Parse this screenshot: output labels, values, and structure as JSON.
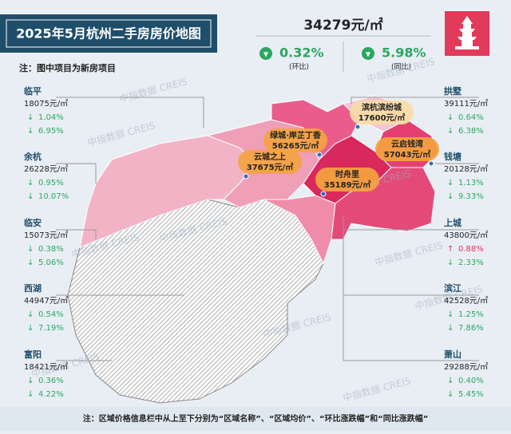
{
  "header": {
    "title": "2025年5月杭州二手房房价地图",
    "price": "34279元/㎡",
    "mom": {
      "arrow": "▼",
      "value": "0.32%",
      "label": "(环比)"
    },
    "yoy": {
      "arrow": "▼",
      "value": "5.98%",
      "label": "(同比)"
    }
  },
  "note": "注：图中项目为新房项目",
  "watermark": "中指数据 CREIS",
  "districts_left": [
    {
      "name": "临平",
      "price": "18075元/㎡",
      "mom_arrow": "↓",
      "mom": "1.04%",
      "yoy_arrow": "↓",
      "yoy": "6.95%"
    },
    {
      "name": "余杭",
      "price": "26228元/㎡",
      "mom_arrow": "↓",
      "mom": "0.95%",
      "yoy_arrow": "↓",
      "yoy": "10.07%"
    },
    {
      "name": "临安",
      "price": "15073元/㎡",
      "mom_arrow": "↓",
      "mom": "0.38%",
      "yoy_arrow": "↓",
      "yoy": "5.06%"
    },
    {
      "name": "西湖",
      "price": "44947元/㎡",
      "mom_arrow": "↓",
      "mom": "0.54%",
      "yoy_arrow": "↓",
      "yoy": "7.19%"
    },
    {
      "name": "富阳",
      "price": "18421元/㎡",
      "mom_arrow": "↓",
      "mom": "0.36%",
      "yoy_arrow": "↓",
      "yoy": "4.22%"
    }
  ],
  "districts_right": [
    {
      "name": "拱墅",
      "price": "39111元/㎡",
      "mom_arrow": "↓",
      "mom": "0.64%",
      "yoy_arrow": "↓",
      "yoy": "6.38%"
    },
    {
      "name": "钱塘",
      "price": "20128元/㎡",
      "mom_arrow": "↓",
      "mom": "1.13%",
      "yoy_arrow": "↓",
      "yoy": "9.33%"
    },
    {
      "name": "上城",
      "price": "43800元/㎡",
      "mom_arrow": "↑",
      "mom": "0.88%",
      "yoy_arrow": "↓",
      "yoy": "2.33%"
    },
    {
      "name": "滨江",
      "price": "42528元/㎡",
      "mom_arrow": "↓",
      "mom": "1.25%",
      "yoy_arrow": "↓",
      "yoy": "7.86%"
    },
    {
      "name": "萧山",
      "price": "29288元/㎡",
      "mom_arrow": "↓",
      "mom": "0.40%",
      "yoy_arrow": "↓",
      "yoy": "5.45%"
    }
  ],
  "projects": [
    {
      "name": "滨杭滨纷城",
      "price": "17600元/㎡"
    },
    {
      "name": "绿城·岸芷丁香",
      "price": "56265元/㎡"
    },
    {
      "name": "云城之上",
      "price": "37675元/㎡"
    },
    {
      "name": "云启钱湾",
      "price": "57043元/㎡"
    },
    {
      "name": "时舟里",
      "price": "35189元/㎡"
    }
  ],
  "footer": "注：区域价格信息栏中从上至下分别为“区域名称”、“区域均价”、“环比涨跌幅”和“同比涨跌幅”"
}
